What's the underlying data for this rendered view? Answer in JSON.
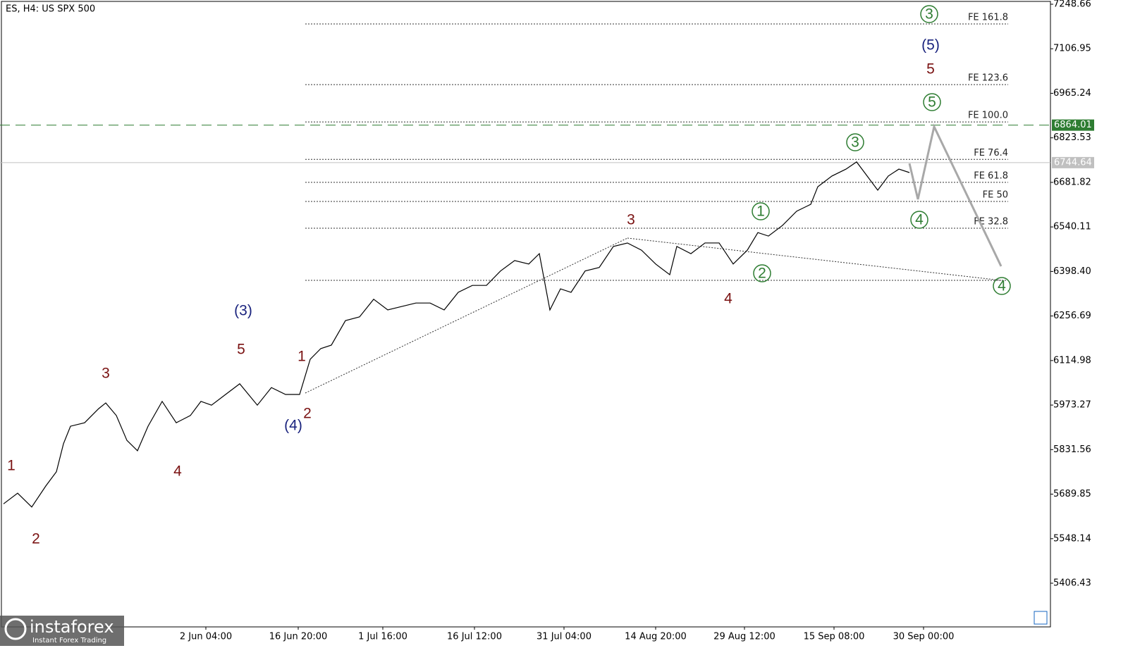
{
  "chart_data": {
    "type": "line",
    "title": "ES, H4:  US SPX 500",
    "color": "#000000",
    "xlim": [
      0,
      1490
    ],
    "ylim": [
      5267.5,
      7257.6
    ],
    "x": [
      5,
      25,
      45,
      65,
      80,
      90,
      100,
      120,
      140,
      150,
      165,
      180,
      195,
      210,
      230,
      250,
      270,
      285,
      300,
      320,
      340,
      365,
      385,
      405,
      425,
      440,
      455,
      470,
      490,
      510,
      530,
      550,
      570,
      590,
      610,
      630,
      650,
      670,
      690,
      710,
      730,
      750,
      765,
      780,
      795,
      810,
      830,
      850,
      870,
      890,
      910,
      930,
      950,
      960,
      980,
      1000,
      1020,
      1040,
      1060,
      1075,
      1090,
      1110,
      1130,
      1150,
      1160,
      1180,
      1200,
      1215,
      1230,
      1245,
      1260,
      1275,
      1290
    ],
    "values": [
      5659,
      5693,
      5649,
      5716,
      5761,
      5850,
      5906,
      5917,
      5962,
      5980,
      5940,
      5861,
      5828,
      5906,
      5985,
      5917,
      5940,
      5985,
      5973,
      6007,
      6041,
      5973,
      6029,
      6007,
      6007,
      6119,
      6153,
      6164,
      6242,
      6254,
      6310,
      6276,
      6287,
      6298,
      6298,
      6276,
      6332,
      6354,
      6354,
      6400,
      6433,
      6422,
      6455,
      6276,
      6343,
      6332,
      6400,
      6411,
      6478,
      6489,
      6466,
      6422,
      6388,
      6478,
      6455,
      6489,
      6489,
      6422,
      6466,
      6522,
      6511,
      6545,
      6590,
      6612,
      6668,
      6702,
      6724,
      6747,
      6702,
      6657,
      6702,
      6724,
      6713
    ],
    "forecast": {
      "color": "#a8a8a8",
      "x": [
        1290,
        1302,
        1325,
        1420
      ],
      "values": [
        6742,
        6628,
        6859,
        6415
      ]
    },
    "yticks": [
      7248.66,
      7106.95,
      6965.24,
      6823.53,
      6681.82,
      6540.11,
      {
        "value": 6398.4,
        "label": "6398.40"
      },
      6256.69,
      6114.98,
      5973.27,
      5831.56,
      5689.85,
      5548.14,
      5406.43
    ],
    "xticks": [
      {
        "value": 292,
        "label": "2 Jun 04:00"
      },
      {
        "value": 423,
        "label": "16 Jun 20:00"
      },
      {
        "value": 543,
        "label": "1 Jul 16:00"
      },
      {
        "value": 673,
        "label": "16 Jul 12:00"
      },
      {
        "value": 800,
        "label": "31 Jul 04:00"
      },
      {
        "value": 930,
        "label": "14 Aug 20:00"
      },
      {
        "value": 1056,
        "label": "29 Aug 12:00"
      },
      {
        "value": 1183,
        "label": "15 Sep 08:00"
      },
      {
        "value": 1310,
        "label": "30 Sep 00:00"
      }
    ],
    "fe_levels": [
      {
        "label": "FE 161.8",
        "value": 7186
      },
      {
        "label": "FE 123.6",
        "value": 6993
      },
      {
        "label": "FE 100.0",
        "value": 6874
      },
      {
        "label": "FE 76.4",
        "value": 6755
      },
      {
        "label": "FE 61.8",
        "value": 6682
      },
      {
        "label": "FE 50",
        "value": 6621
      },
      {
        "label": "FE 32.8",
        "value": 6536
      }
    ],
    "support_level": 6370,
    "target_line": 6864.01,
    "target_color": "#2e7d32",
    "price_line": 6744.64,
    "annotations": [
      "1",
      "2",
      "3",
      "4",
      "5",
      "(3)",
      "(4)",
      "1",
      "2",
      "3",
      "4",
      "1",
      "2",
      "3",
      "4",
      "5",
      "4",
      "3",
      "(5)",
      "5"
    ],
    "watermark": {
      "name": "instaforex",
      "tagline": "Instant Forex Trading"
    }
  }
}
